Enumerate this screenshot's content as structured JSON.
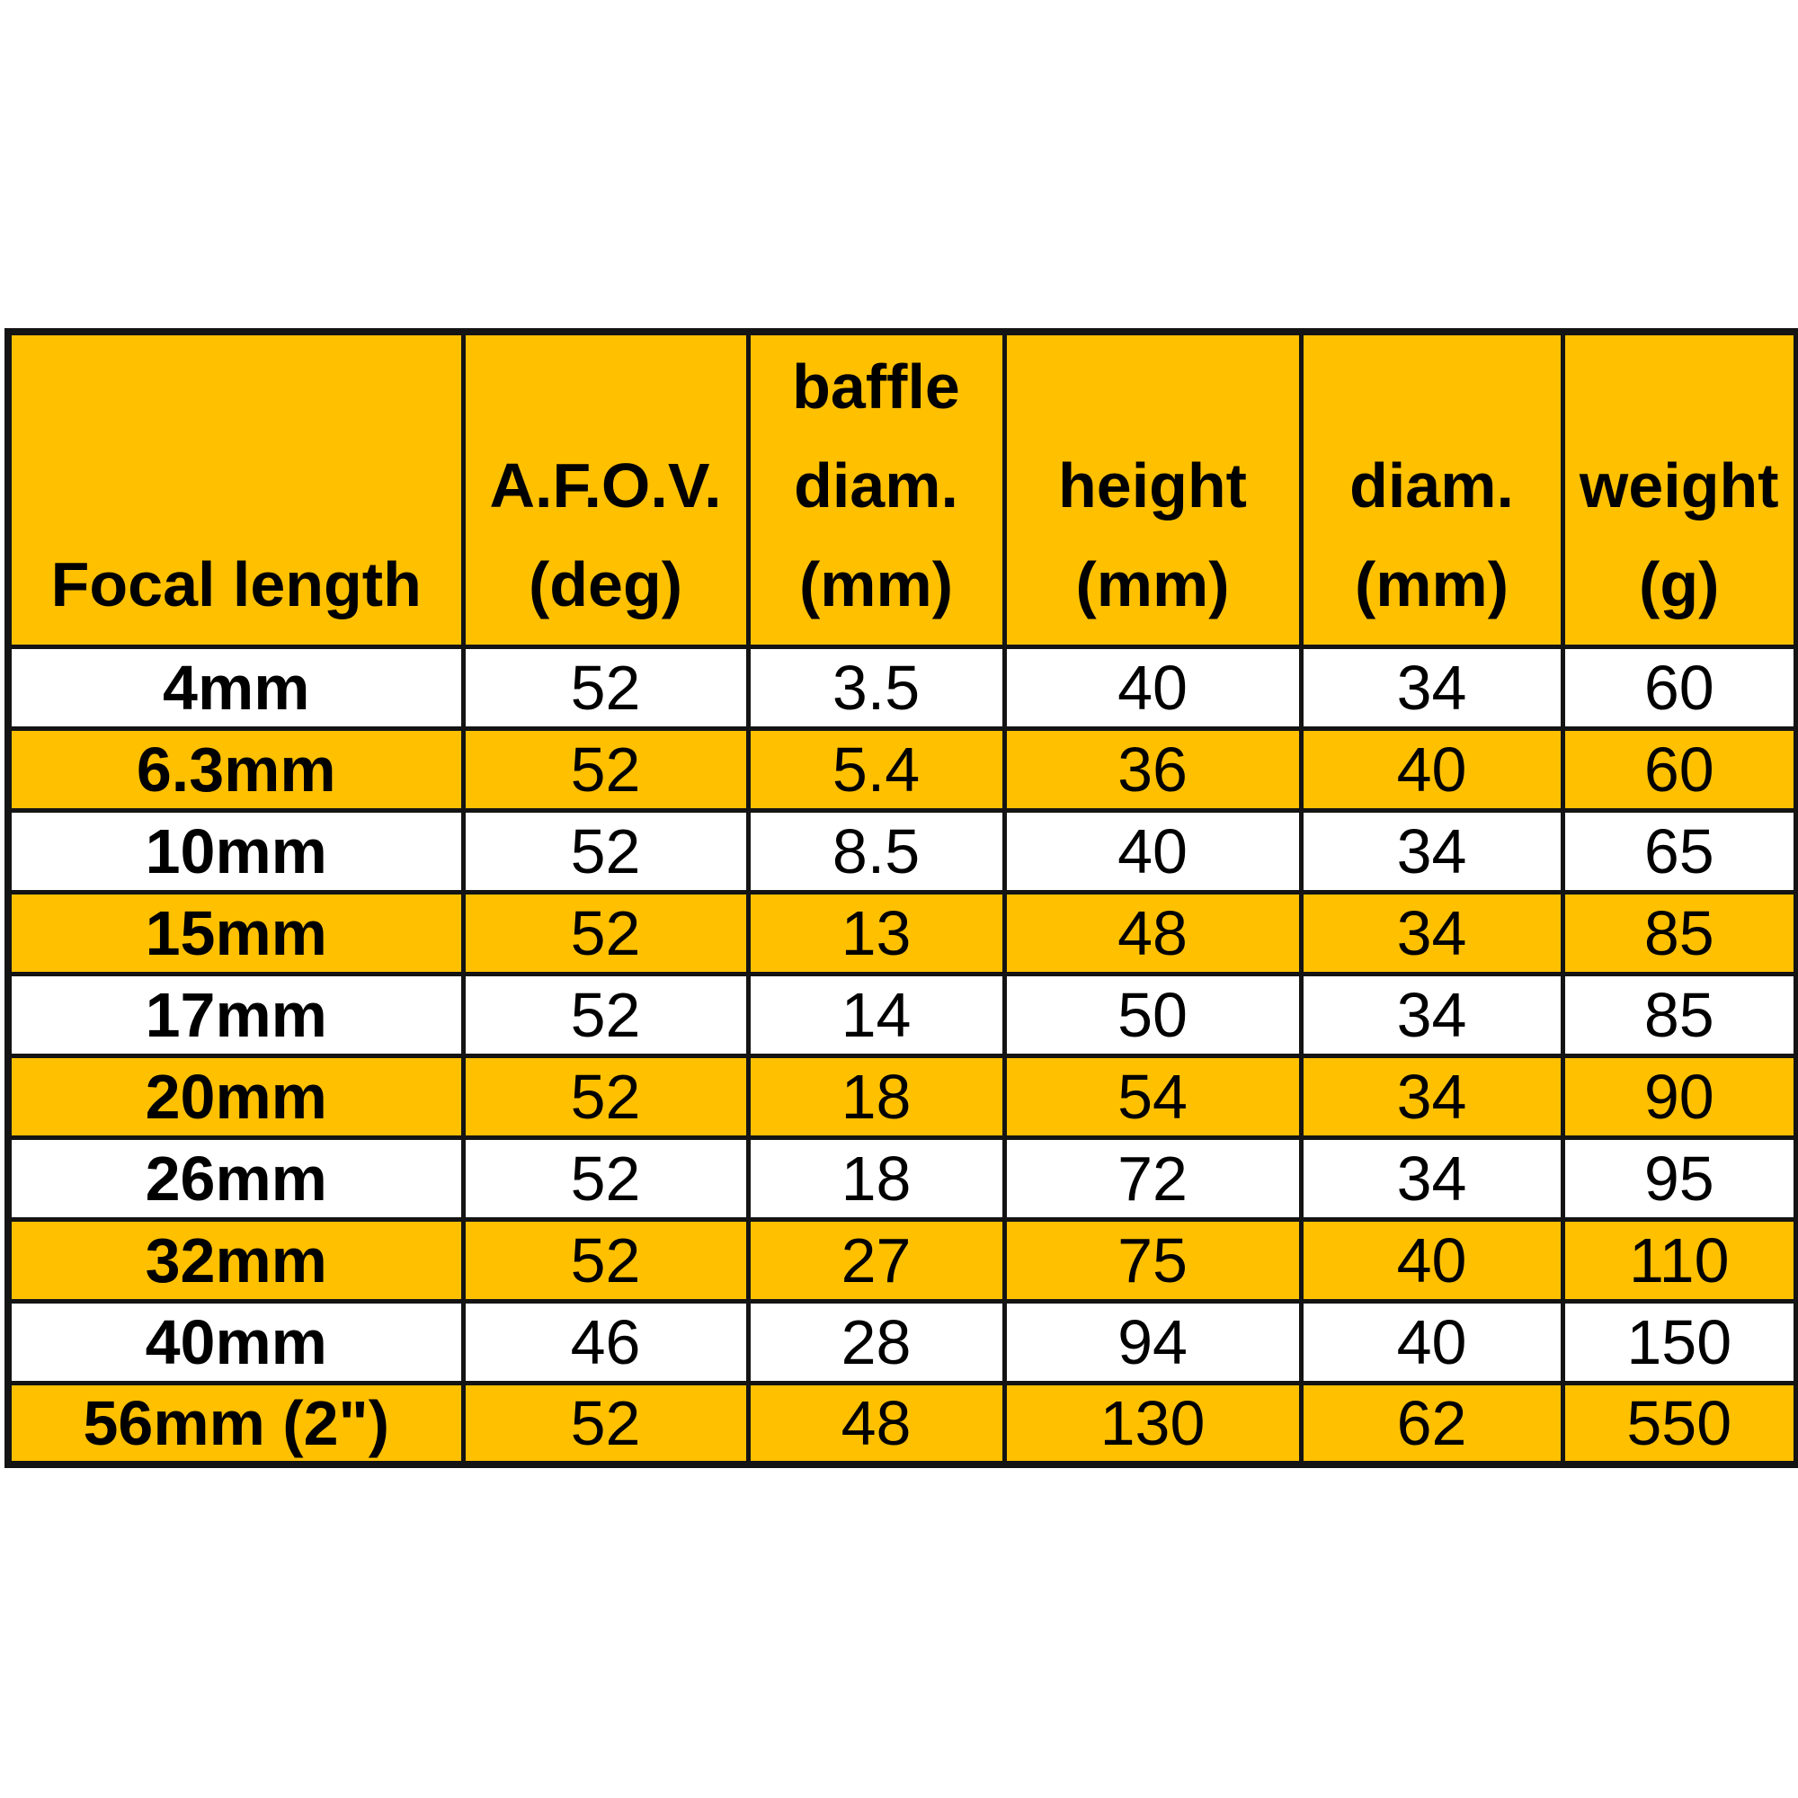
{
  "style": {
    "accent_yellow": "#FFC000",
    "row_white": "#FFFFFF",
    "border_black": "#141414",
    "text_black": "#000000"
  },
  "table": {
    "header": {
      "columns": [
        {
          "id": "focal-length",
          "lines": [
            "Focal length"
          ]
        },
        {
          "id": "afov",
          "lines": [
            "A.F.O.V.",
            "(deg)"
          ]
        },
        {
          "id": "baffle-diam",
          "lines": [
            "baffle",
            "diam.",
            "(mm)"
          ]
        },
        {
          "id": "height",
          "lines": [
            "height",
            "(mm)"
          ]
        },
        {
          "id": "diam",
          "lines": [
            "diam.",
            "(mm)"
          ]
        },
        {
          "id": "weight",
          "lines": [
            "weight",
            "(g)"
          ]
        }
      ]
    },
    "rows": [
      {
        "cells": [
          "4mm",
          "52",
          "3.5",
          "40",
          "34",
          "60"
        ]
      },
      {
        "cells": [
          "6.3mm",
          "52",
          "5.4",
          "36",
          "40",
          "60"
        ]
      },
      {
        "cells": [
          "10mm",
          "52",
          "8.5",
          "40",
          "34",
          "65"
        ]
      },
      {
        "cells": [
          "15mm",
          "52",
          "13",
          "48",
          "34",
          "85"
        ]
      },
      {
        "cells": [
          "17mm",
          "52",
          "14",
          "50",
          "34",
          "85"
        ]
      },
      {
        "cells": [
          "20mm",
          "52",
          "18",
          "54",
          "34",
          "90"
        ]
      },
      {
        "cells": [
          "26mm",
          "52",
          "18",
          "72",
          "34",
          "95"
        ]
      },
      {
        "cells": [
          "32mm",
          "52",
          "27",
          "75",
          "40",
          "110"
        ]
      },
      {
        "cells": [
          "40mm",
          "46",
          "28",
          "94",
          "40",
          "150"
        ]
      },
      {
        "cells": [
          "56mm (2\")",
          "52",
          "48",
          "130",
          "62",
          "550"
        ]
      }
    ]
  },
  "chart_data": {
    "type": "table",
    "columns": [
      "Focal length",
      "A.F.O.V. (deg)",
      "baffle diam. (mm)",
      "height (mm)",
      "diam. (mm)",
      "weight (g)"
    ],
    "rows": [
      [
        "4mm",
        52,
        3.5,
        40,
        34,
        60
      ],
      [
        "6.3mm",
        52,
        5.4,
        36,
        40,
        60
      ],
      [
        "10mm",
        52,
        8.5,
        40,
        34,
        65
      ],
      [
        "15mm",
        52,
        13,
        48,
        34,
        85
      ],
      [
        "17mm",
        52,
        14,
        50,
        34,
        85
      ],
      [
        "20mm",
        52,
        18,
        54,
        34,
        90
      ],
      [
        "26mm",
        52,
        18,
        72,
        34,
        95
      ],
      [
        "32mm",
        52,
        27,
        75,
        40,
        110
      ],
      [
        "40mm",
        46,
        28,
        94,
        40,
        150
      ],
      [
        "56mm (2\")",
        52,
        48,
        130,
        62,
        550
      ]
    ],
    "title": "",
    "legend": "none",
    "grid": "on",
    "layout_hints": {
      "header_background": "#FFC000",
      "row_striping": [
        "#FFFFFF",
        "#FFC000"
      ],
      "first_row_color": "#FFFFFF"
    }
  }
}
